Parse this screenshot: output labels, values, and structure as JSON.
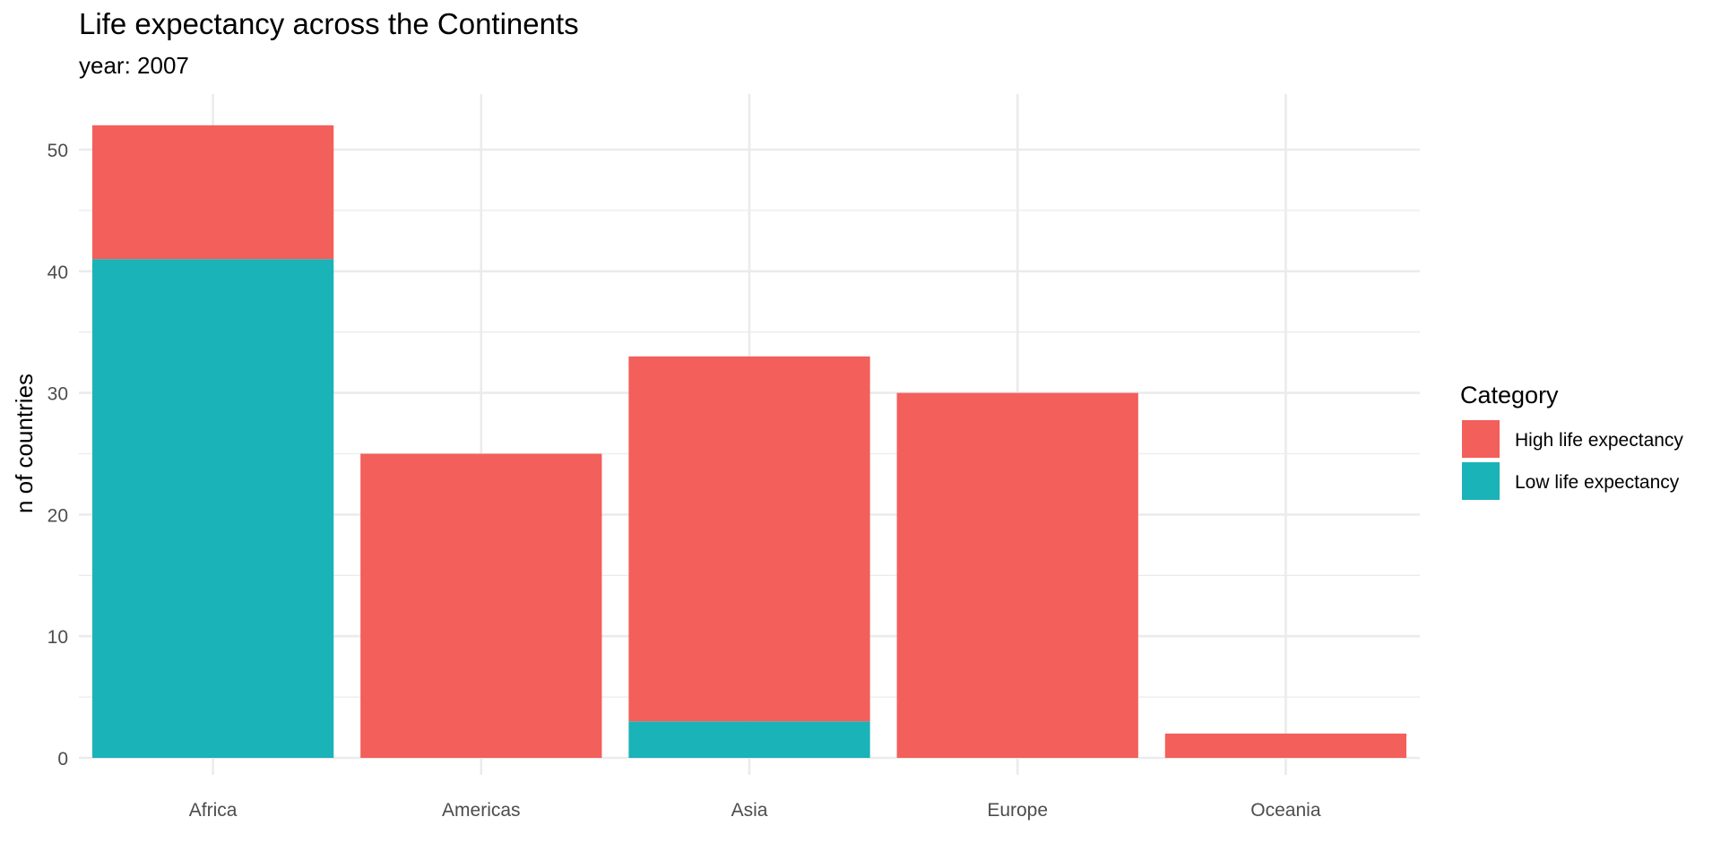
{
  "chart_data": {
    "type": "bar",
    "stacked": true,
    "title": "Life expectancy across the Continents",
    "subtitle": "year: 2007",
    "xlabel": "",
    "ylabel": "n of countries",
    "categories": [
      "Africa",
      "Americas",
      "Asia",
      "Europe",
      "Oceania"
    ],
    "series": [
      {
        "name": "Low life expectancy",
        "values": [
          41,
          0,
          3,
          0,
          0
        ],
        "color": "#19B3B8"
      },
      {
        "name": "High life expectancy",
        "values": [
          11,
          25,
          30,
          30,
          2
        ],
        "color": "#F35F5B"
      }
    ],
    "ylim": [
      0,
      54
    ],
    "yticks": [
      0,
      10,
      20,
      30,
      40,
      50
    ],
    "grid": true,
    "legend": {
      "title": "Category",
      "position": "right",
      "entries": [
        "High life expectancy",
        "Low life expectancy"
      ]
    }
  }
}
